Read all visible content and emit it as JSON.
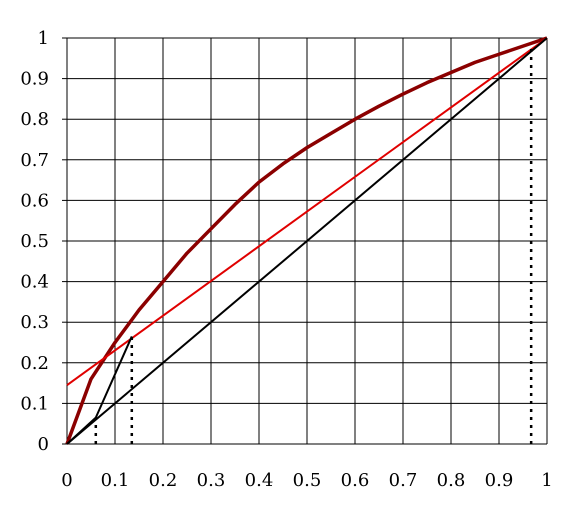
{
  "chart_data": {
    "type": "line",
    "title": "",
    "xlabel": "",
    "ylabel": "",
    "xlim": [
      0,
      1
    ],
    "ylim": [
      0,
      1
    ],
    "grid": true,
    "x_ticks": [
      "0",
      "0.1",
      "0.2",
      "0.3",
      "0.4",
      "0.5",
      "0.6",
      "0.7",
      "0.8",
      "0.9",
      "1"
    ],
    "y_ticks": [
      "0",
      "0.1",
      "0.2",
      "0.3",
      "0.4",
      "0.5",
      "0.6",
      "0.7",
      "0.8",
      "0.9",
      "1"
    ],
    "series": [
      {
        "color": "#8b0000",
        "style": "solid-thick",
        "points": [
          [
            0,
            0
          ],
          [
            0.05,
            0.16
          ],
          [
            0.1,
            0.25
          ],
          [
            0.15,
            0.33
          ],
          [
            0.2,
            0.4
          ],
          [
            0.25,
            0.47
          ],
          [
            0.3,
            0.53
          ],
          [
            0.35,
            0.59
          ],
          [
            0.4,
            0.645
          ],
          [
            0.45,
            0.69
          ],
          [
            0.5,
            0.73
          ],
          [
            0.55,
            0.765
          ],
          [
            0.6,
            0.8
          ],
          [
            0.65,
            0.832
          ],
          [
            0.7,
            0.862
          ],
          [
            0.75,
            0.89
          ],
          [
            0.8,
            0.915
          ],
          [
            0.85,
            0.94
          ],
          [
            0.9,
            0.96
          ],
          [
            0.95,
            0.98
          ],
          [
            1,
            1
          ]
        ]
      },
      {
        "color": "#e00000",
        "style": "solid",
        "points": [
          [
            0,
            0.145
          ],
          [
            1,
            1
          ]
        ]
      },
      {
        "color": "#000000",
        "style": "solid",
        "points": [
          [
            0,
            0
          ],
          [
            1,
            1
          ]
        ]
      },
      {
        "color": "#000000",
        "style": "solid",
        "points": [
          [
            0,
            0
          ],
          [
            0.06,
            0.065
          ],
          [
            0.135,
            0.265
          ]
        ]
      },
      {
        "color": "#000000",
        "style": "dotted",
        "points": [
          [
            0.06,
            0
          ],
          [
            0.06,
            0.065
          ]
        ]
      },
      {
        "color": "#000000",
        "style": "dotted",
        "points": [
          [
            0.135,
            0
          ],
          [
            0.135,
            0.265
          ]
        ]
      },
      {
        "color": "#000000",
        "style": "dotted",
        "points": [
          [
            0.967,
            0
          ],
          [
            0.967,
            0.98
          ]
        ]
      }
    ]
  }
}
